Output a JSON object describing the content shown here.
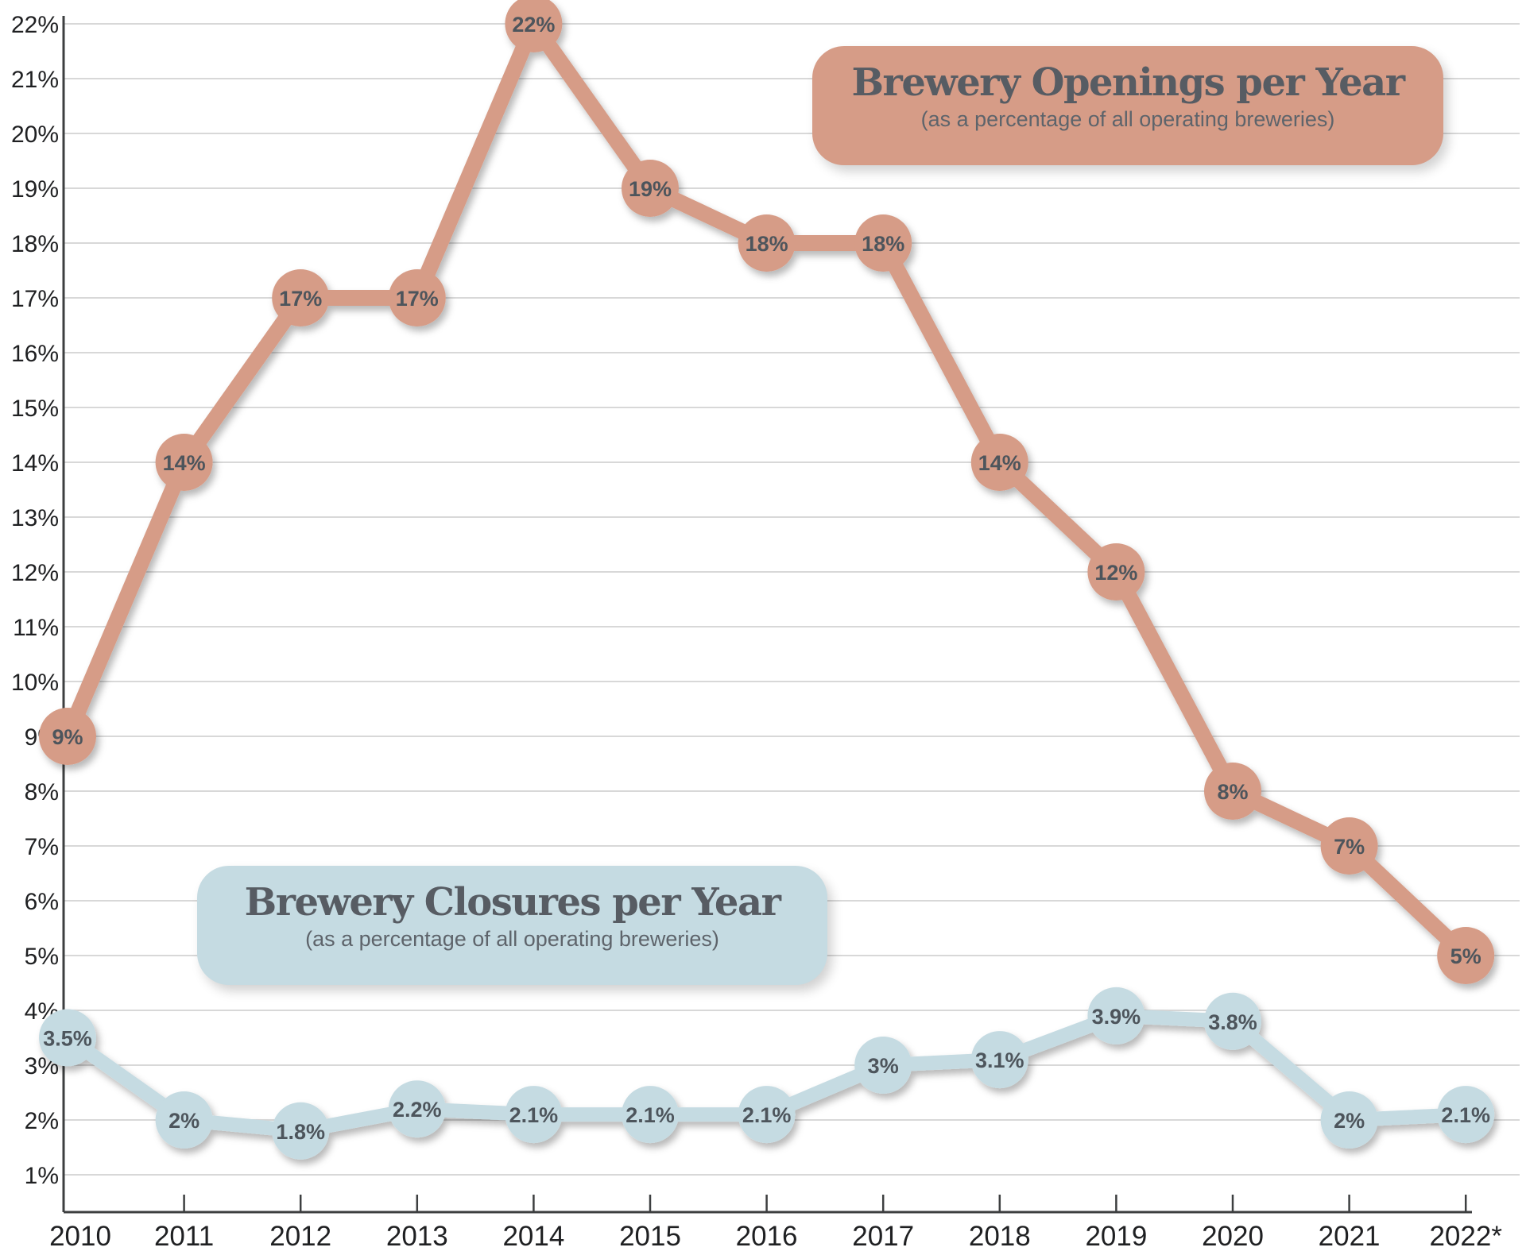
{
  "chart_data": {
    "type": "line",
    "x_labels": [
      "2010",
      "2011",
      "2012",
      "2013",
      "2014",
      "2015",
      "2016",
      "2017",
      "2018",
      "2019",
      "2020",
      "2021",
      "2022*"
    ],
    "y_tick_labels": [
      "22%",
      "21%",
      "20%",
      "19%",
      "18%",
      "17%",
      "16%",
      "15%",
      "14%",
      "13%",
      "12%",
      "11%",
      "10%",
      "9%",
      "8%",
      "7%",
      "6%",
      "5%",
      "4%",
      "3%",
      "2%",
      "1%"
    ],
    "y_tick_values": [
      22,
      21,
      20,
      19,
      18,
      17,
      16,
      15,
      14,
      13,
      12,
      11,
      10,
      9,
      8,
      7,
      6,
      5,
      4,
      3,
      2,
      1
    ],
    "ylim": [
      0,
      22
    ],
    "grid": true,
    "legend_position": "floating-label-boxes",
    "series": [
      {
        "name": "Brewery Openings per Year",
        "subtitle": "(as a percentage of all operating breweries)",
        "color": "#D69C87",
        "values": [
          9,
          14,
          17,
          17,
          22,
          19,
          18,
          18,
          14,
          12,
          8,
          7,
          5
        ],
        "point_labels": [
          "9%",
          "14%",
          "17%",
          "17%",
          "22%",
          "19%",
          "18%",
          "18%",
          "14%",
          "12%",
          "8%",
          "7%",
          "5%"
        ]
      },
      {
        "name": "Brewery Closures per Year",
        "subtitle": "(as a percentage of all operating breweries)",
        "color": "#C5DBE2",
        "values": [
          3.5,
          2,
          1.8,
          2.2,
          2.1,
          2.1,
          2.1,
          3,
          3.1,
          3.9,
          3.8,
          2,
          2.1
        ],
        "point_labels": [
          "3.5%",
          "2%",
          "1.8%",
          "2.2%",
          "2.1%",
          "2.1%",
          "2.1%",
          "3%",
          "3.1%",
          "3.9%",
          "3.8%",
          "2%",
          "2.1%"
        ]
      }
    ]
  },
  "theme": {
    "openings_box_color": "#D69C87",
    "closures_box_color": "#C5DBE2",
    "grid_color": "#D8D8D8",
    "axis_color": "#3D3F40",
    "axis_tick_label_color": "#1F2022",
    "point_label_color": "#4E545B",
    "title_color": "#575C63",
    "subtitle_color": "#5E646B"
  }
}
